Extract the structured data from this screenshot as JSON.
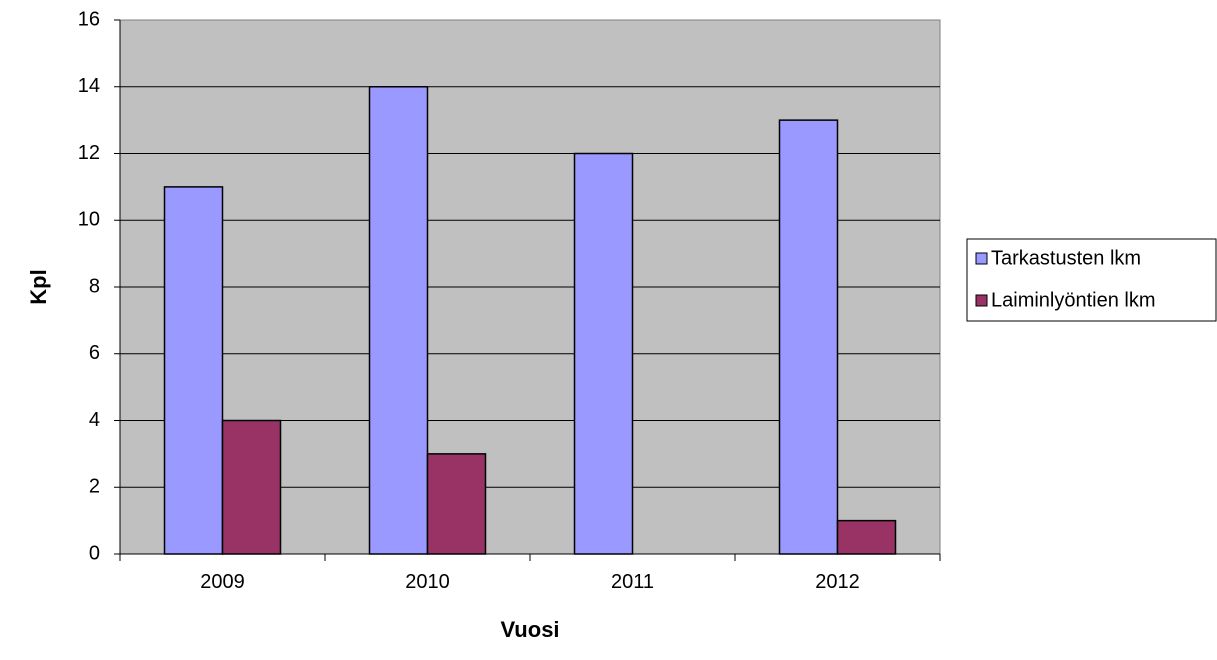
{
  "chart_data": {
    "type": "bar",
    "title": "",
    "xlabel": "Vuosi",
    "ylabel": "Kpl",
    "categories": [
      "2009",
      "2010",
      "2011",
      "2012"
    ],
    "series": [
      {
        "name": "Tarkastusten lkm",
        "values": [
          11,
          14,
          12,
          13
        ],
        "color": "#9999ff"
      },
      {
        "name": "Laiminlyöntien lkm",
        "values": [
          4,
          3,
          0,
          1
        ],
        "color": "#993366"
      }
    ],
    "ylim": [
      0,
      16
    ],
    "yticks": [
      0,
      2,
      4,
      6,
      8,
      10,
      12,
      14,
      16
    ],
    "grid": true,
    "plot_background": "#c0c0c0",
    "legend_position": "right"
  }
}
